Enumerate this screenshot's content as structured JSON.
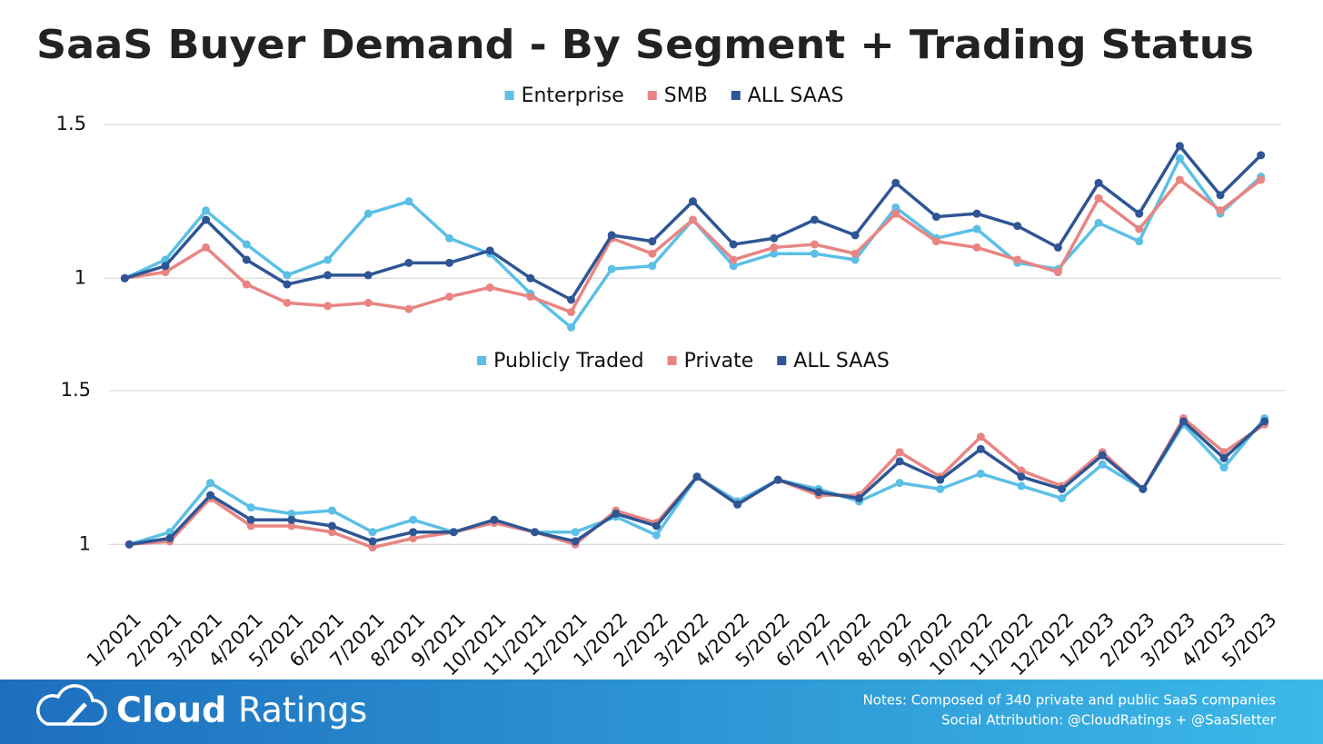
{
  "title": "SaaS Buyer Demand - By Segment + Trading Status",
  "chart_data": [
    {
      "type": "line",
      "legend": "top",
      "grid": true,
      "ylim": [
        0.8,
        1.5
      ],
      "yticks": [
        1,
        1.5
      ],
      "series": [
        {
          "name": "Enterprise",
          "color": "#5bbfe6",
          "values": [
            1.0,
            1.06,
            1.22,
            1.11,
            1.01,
            1.06,
            1.21,
            1.25,
            1.13,
            1.08,
            0.95,
            0.84,
            1.03,
            1.04,
            1.19,
            1.04,
            1.08,
            1.08,
            1.06,
            1.23,
            1.13,
            1.16,
            1.05,
            1.03,
            1.18,
            1.12,
            1.39,
            1.21,
            1.33
          ]
        },
        {
          "name": "SMB",
          "color": "#e88582",
          "values": [
            1.0,
            1.02,
            1.1,
            0.98,
            0.92,
            0.91,
            0.92,
            0.9,
            0.94,
            0.97,
            0.94,
            0.89,
            1.13,
            1.08,
            1.19,
            1.06,
            1.1,
            1.11,
            1.08,
            1.21,
            1.12,
            1.1,
            1.06,
            1.02,
            1.26,
            1.16,
            1.32,
            1.22,
            1.32
          ]
        },
        {
          "name": "ALL SAAS",
          "color": "#2e5594",
          "values": [
            1.0,
            1.04,
            1.19,
            1.06,
            0.98,
            1.01,
            1.01,
            1.05,
            1.05,
            1.09,
            1.0,
            0.93,
            1.14,
            1.12,
            1.25,
            1.11,
            1.13,
            1.19,
            1.14,
            1.31,
            1.2,
            1.21,
            1.17,
            1.1,
            1.31,
            1.21,
            1.43,
            1.27,
            1.4
          ]
        }
      ]
    },
    {
      "type": "line",
      "legend": "top",
      "grid": true,
      "categories": [
        "1/2021",
        "2/2021",
        "3/2021",
        "4/2021",
        "5/2021",
        "6/2021",
        "7/2021",
        "8/2021",
        "9/2021",
        "10/2021",
        "11/2021",
        "12/2021",
        "1/2022",
        "2/2022",
        "3/2022",
        "4/2022",
        "5/2022",
        "6/2022",
        "7/2022",
        "8/2022",
        "9/2022",
        "10/2022",
        "11/2022",
        "12/2022",
        "1/2023",
        "2/2023",
        "3/2023",
        "4/2023",
        "5/2023"
      ],
      "ylim": [
        0.8,
        1.5
      ],
      "yticks": [
        1,
        1.5
      ],
      "series": [
        {
          "name": "Publicly Traded",
          "color": "#5bbfe6",
          "values": [
            1.0,
            1.04,
            1.2,
            1.12,
            1.1,
            1.11,
            1.04,
            1.08,
            1.04,
            1.07,
            1.04,
            1.04,
            1.09,
            1.03,
            1.22,
            1.14,
            1.21,
            1.18,
            1.14,
            1.2,
            1.18,
            1.23,
            1.19,
            1.15,
            1.26,
            1.18,
            1.39,
            1.25,
            1.41
          ]
        },
        {
          "name": "Private",
          "color": "#e88582",
          "values": [
            1.0,
            1.01,
            1.15,
            1.06,
            1.06,
            1.04,
            0.99,
            1.02,
            1.04,
            1.07,
            1.04,
            1.0,
            1.11,
            1.07,
            1.22,
            1.13,
            1.21,
            1.16,
            1.16,
            1.3,
            1.22,
            1.35,
            1.24,
            1.19,
            1.3,
            1.18,
            1.41,
            1.3,
            1.39
          ]
        },
        {
          "name": "ALL SAAS",
          "color": "#2e5594",
          "values": [
            1.0,
            1.02,
            1.16,
            1.08,
            1.08,
            1.06,
            1.01,
            1.04,
            1.04,
            1.08,
            1.04,
            1.01,
            1.1,
            1.06,
            1.22,
            1.13,
            1.21,
            1.17,
            1.15,
            1.27,
            1.21,
            1.31,
            1.22,
            1.18,
            1.29,
            1.18,
            1.4,
            1.28,
            1.4
          ]
        }
      ]
    }
  ],
  "footer": {
    "brand_bold": "Cloud",
    "brand_light": "Ratings",
    "notes": "Notes: Composed of 340 private and public SaaS companies",
    "attribution": "Social Attribution: @CloudRatings + @SaaSletter"
  }
}
